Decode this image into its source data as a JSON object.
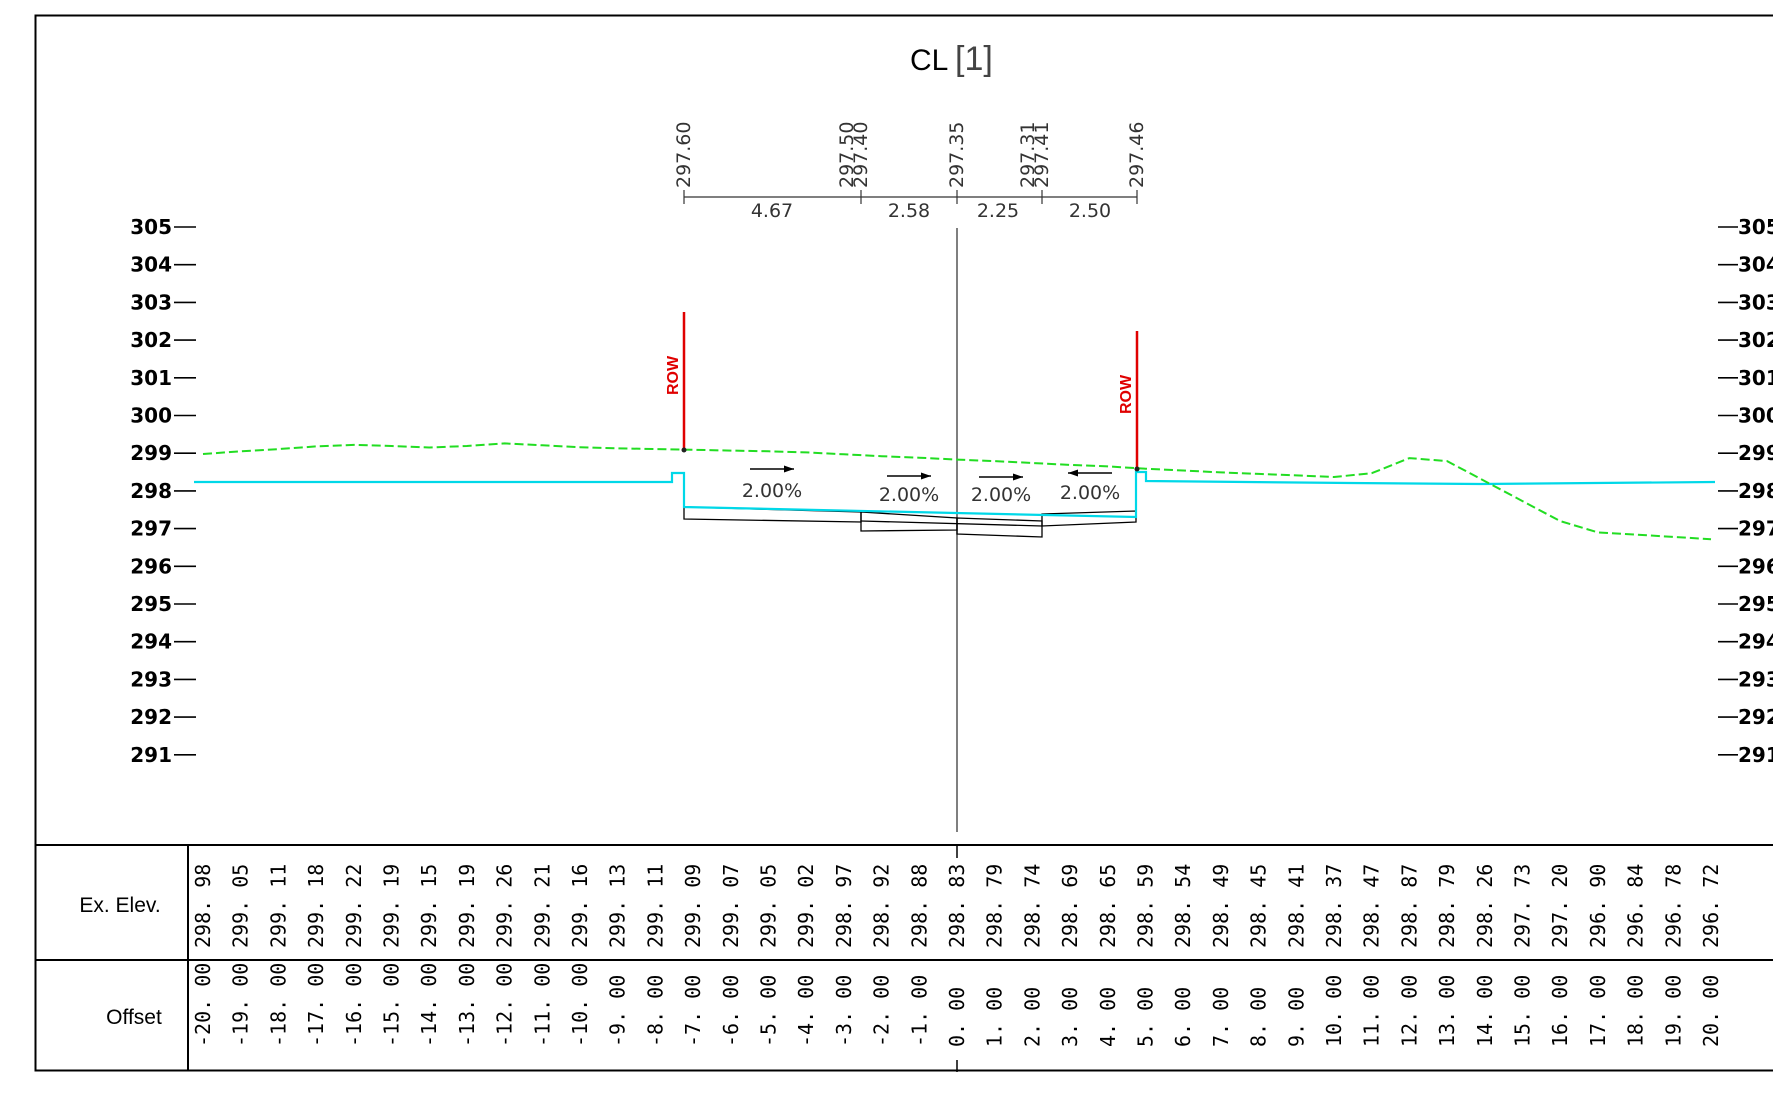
{
  "title": {
    "main": "CL",
    "bracket": "[1]"
  },
  "top_elevations": [
    "297.60",
    "297.50",
    "297.40",
    "297.35",
    "297.31",
    "297.41",
    "297.46"
  ],
  "widths": [
    "4.67",
    "2.58",
    "2.25",
    "2.50"
  ],
  "slopes": [
    "2.00%",
    "2.00%",
    "2.00%",
    "2.00%"
  ],
  "slope_directions": [
    "right",
    "right",
    "right",
    "left"
  ],
  "row_label": "ROW",
  "y_axis": {
    "min": 291,
    "max": 305,
    "ticks": [
      305,
      304,
      303,
      302,
      301,
      300,
      299,
      298,
      297,
      296,
      295,
      294,
      293,
      292,
      291
    ]
  },
  "table": {
    "elev_label": "Ex. Elev.",
    "offset_label": "Offset",
    "elevations": [
      "298. 98",
      "299. 05",
      "299. 11",
      "299. 18",
      "299. 22",
      "299. 19",
      "299. 15",
      "299. 19",
      "299. 26",
      "299. 21",
      "299. 16",
      "299. 13",
      "299. 11",
      "299. 09",
      "299. 07",
      "299. 05",
      "299. 02",
      "298. 97",
      "298. 92",
      "298. 88",
      "298. 83",
      "298. 79",
      "298. 74",
      "298. 69",
      "298. 65",
      "298. 59",
      "298. 54",
      "298. 49",
      "298. 45",
      "298. 41",
      "298. 37",
      "298. 47",
      "298. 87",
      "298. 79",
      "298. 26",
      "297. 73",
      "297. 20",
      "296. 90",
      "296. 84",
      "296. 78",
      "296. 72"
    ],
    "offsets": [
      "-20. 00",
      "-19. 00",
      "-18. 00",
      "-17. 00",
      "-16. 00",
      "-15. 00",
      "-14. 00",
      "-13. 00",
      "-12. 00",
      "-11. 00",
      "-10. 00",
      "-9. 00",
      "-8. 00",
      "-7. 00",
      "-6. 00",
      "-5. 00",
      "-4. 00",
      "-3. 00",
      "-2. 00",
      "-1. 00",
      "0. 00",
      "1. 00",
      "2. 00",
      "3. 00",
      "4. 00",
      "5. 00",
      "6. 00",
      "7. 00",
      "8. 00",
      "9. 00",
      "10. 00",
      "11. 00",
      "12. 00",
      "13. 00",
      "14. 00",
      "15. 00",
      "16. 00",
      "17. 00",
      "18. 00",
      "19. 00",
      "20. 00"
    ]
  },
  "colors": {
    "existing_ground": "#22dd22",
    "proposed_surface": "#00d8e8",
    "row": "#e00000",
    "frame": "#000000"
  }
}
